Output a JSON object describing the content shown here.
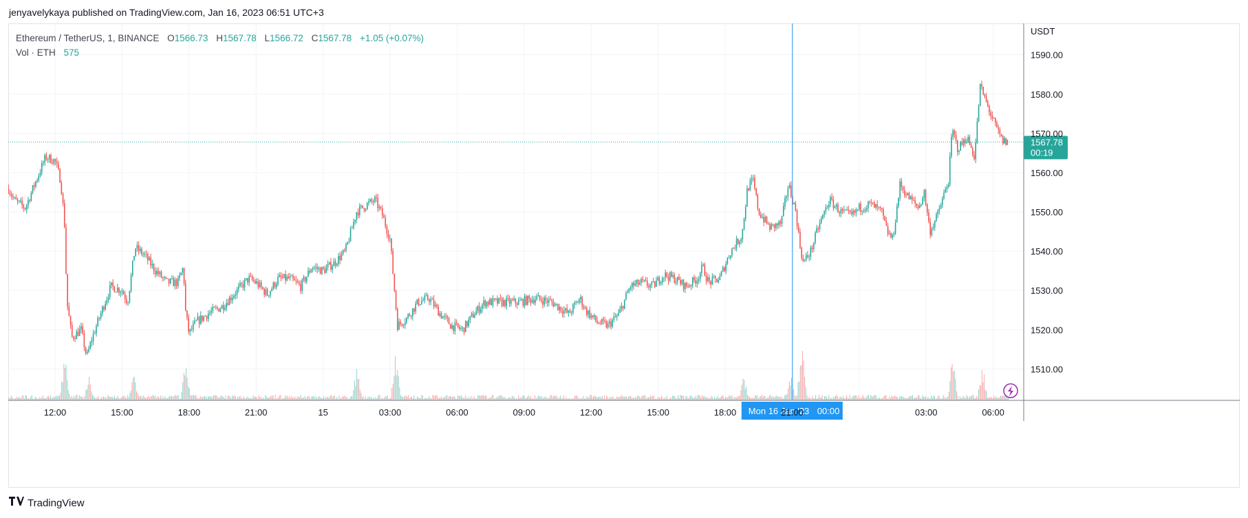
{
  "publisher_line": "jenyavelykaya published on TradingView.com, Jan 16, 2023 06:51 UTC+3",
  "footer_brand": "TradingView",
  "legend": {
    "symbol": "Ethereum / TetherUS, 1, BINANCE",
    "o_label": "O",
    "o_value": "1566.73",
    "h_label": "H",
    "h_value": "1567.78",
    "l_label": "L",
    "l_value": "1566.72",
    "c_label": "C",
    "c_value": "1567.78",
    "change": "+1.05 (+0.07%)",
    "vol_label": "Vol · ETH",
    "vol_value": "575"
  },
  "colors": {
    "up": "#26a69a",
    "down": "#ef5350",
    "crosshair": "#2196f3",
    "grid": "#f0f3fa",
    "accent_badge": "#9c27b0"
  },
  "chart_data": {
    "type": "candlestick",
    "symbol": "ETH/USDT",
    "interval": "1",
    "currency_label": "USDT",
    "ylim": [
      1502,
      1598
    ],
    "y_ticks": [
      "1590.00",
      "1580.00",
      "1570.00",
      "1560.00",
      "1550.00",
      "1540.00",
      "1530.00",
      "1520.00",
      "1510.00"
    ],
    "x_ticks": [
      "12:00",
      "15:00",
      "18:00",
      "21:00",
      "15",
      "03:00",
      "06:00",
      "09:00",
      "12:00",
      "15:00",
      "18:00",
      "21:00",
      "00:00",
      "03:00",
      "06:00"
    ],
    "last_price": "1567.78",
    "countdown": "00:19",
    "crosshair_label_date": "Mon 16 Jan '23",
    "crosshair_label_time": "00:00",
    "price_path": [
      {
        "t": "09:55",
        "p": 1556
      },
      {
        "t": "10:10",
        "p": 1553
      },
      {
        "t": "10:40",
        "p": 1551
      },
      {
        "t": "11:05",
        "p": 1557
      },
      {
        "t": "11:35",
        "p": 1564
      },
      {
        "t": "12:00",
        "p": 1563
      },
      {
        "t": "12:15",
        "p": 1558
      },
      {
        "t": "12:25",
        "p": 1548
      },
      {
        "t": "12:32",
        "p": 1527
      },
      {
        "t": "12:45",
        "p": 1518
      },
      {
        "t": "13:10",
        "p": 1520
      },
      {
        "t": "13:25",
        "p": 1513
      },
      {
        "t": "13:40",
        "p": 1518
      },
      {
        "t": "14:10",
        "p": 1526
      },
      {
        "t": "14:30",
        "p": 1531
      },
      {
        "t": "15:00",
        "p": 1530
      },
      {
        "t": "15:15",
        "p": 1527
      },
      {
        "t": "15:35",
        "p": 1541
      },
      {
        "t": "16:00",
        "p": 1539
      },
      {
        "t": "16:30",
        "p": 1535
      },
      {
        "t": "17:00",
        "p": 1532
      },
      {
        "t": "17:30",
        "p": 1532
      },
      {
        "t": "17:45",
        "p": 1536
      },
      {
        "t": "17:50",
        "p": 1525
      },
      {
        "t": "18:00",
        "p": 1519
      },
      {
        "t": "18:20",
        "p": 1522
      },
      {
        "t": "18:50",
        "p": 1524
      },
      {
        "t": "19:30",
        "p": 1526
      },
      {
        "t": "20:00",
        "p": 1529
      },
      {
        "t": "20:40",
        "p": 1533
      },
      {
        "t": "21:00",
        "p": 1532
      },
      {
        "t": "21:30",
        "p": 1529
      },
      {
        "t": "22:00",
        "p": 1533
      },
      {
        "t": "22:30",
        "p": 1533
      },
      {
        "t": "23:00",
        "p": 1531
      },
      {
        "t": "23:30",
        "p": 1536
      },
      {
        "t": "00:00",
        "p": 1535
      },
      {
        "t": "00:30",
        "p": 1537
      },
      {
        "t": "01:00",
        "p": 1540
      },
      {
        "t": "01:30",
        "p": 1550
      },
      {
        "t": "02:00",
        "p": 1552
      },
      {
        "t": "02:20",
        "p": 1553
      },
      {
        "t": "02:40",
        "p": 1549
      },
      {
        "t": "03:00",
        "p": 1543
      },
      {
        "t": "03:20",
        "p": 1521
      },
      {
        "t": "03:45",
        "p": 1523
      },
      {
        "t": "04:15",
        "p": 1527
      },
      {
        "t": "04:45",
        "p": 1528
      },
      {
        "t": "05:15",
        "p": 1524
      },
      {
        "t": "05:45",
        "p": 1521
      },
      {
        "t": "06:15",
        "p": 1520
      },
      {
        "t": "06:45",
        "p": 1524
      },
      {
        "t": "07:15",
        "p": 1527
      },
      {
        "t": "08:00",
        "p": 1527
      },
      {
        "t": "08:45",
        "p": 1527
      },
      {
        "t": "09:30",
        "p": 1528
      },
      {
        "t": "10:15",
        "p": 1527
      },
      {
        "t": "11:00",
        "p": 1524
      },
      {
        "t": "11:30",
        "p": 1528
      },
      {
        "t": "11:45",
        "p": 1525
      },
      {
        "t": "12:15",
        "p": 1522
      },
      {
        "t": "12:45",
        "p": 1521
      },
      {
        "t": "13:15",
        "p": 1524
      },
      {
        "t": "13:45",
        "p": 1531
      },
      {
        "t": "14:15",
        "p": 1532
      },
      {
        "t": "14:45",
        "p": 1531
      },
      {
        "t": "15:15",
        "p": 1534
      },
      {
        "t": "15:45",
        "p": 1533
      },
      {
        "t": "16:15",
        "p": 1531
      },
      {
        "t": "16:45",
        "p": 1533
      },
      {
        "t": "17:00",
        "p": 1536
      },
      {
        "t": "17:15",
        "p": 1532
      },
      {
        "t": "17:45",
        "p": 1533
      },
      {
        "t": "18:15",
        "p": 1540
      },
      {
        "t": "18:45",
        "p": 1544
      },
      {
        "t": "19:00",
        "p": 1556
      },
      {
        "t": "19:15",
        "p": 1558
      },
      {
        "t": "19:30",
        "p": 1550
      },
      {
        "t": "20:00",
        "p": 1546
      },
      {
        "t": "20:30",
        "p": 1547
      },
      {
        "t": "20:50",
        "p": 1557
      },
      {
        "t": "21:10",
        "p": 1550
      },
      {
        "t": "21:20",
        "p": 1542
      },
      {
        "t": "21:30",
        "p": 1537
      },
      {
        "t": "21:50",
        "p": 1540
      },
      {
        "t": "22:10",
        "p": 1546
      },
      {
        "t": "22:40",
        "p": 1553
      },
      {
        "t": "23:10",
        "p": 1550
      },
      {
        "t": "23:40",
        "p": 1549
      },
      {
        "t": "00:00",
        "p": 1551
      },
      {
        "t": "00:30",
        "p": 1552
      },
      {
        "t": "01:00",
        "p": 1550
      },
      {
        "t": "01:15",
        "p": 1545
      },
      {
        "t": "01:30",
        "p": 1543
      },
      {
        "t": "01:50",
        "p": 1557
      },
      {
        "t": "02:10",
        "p": 1554
      },
      {
        "t": "02:40",
        "p": 1551
      },
      {
        "t": "02:55",
        "p": 1555
      },
      {
        "t": "03:10",
        "p": 1545
      },
      {
        "t": "03:30",
        "p": 1549
      },
      {
        "t": "04:00",
        "p": 1558
      },
      {
        "t": "04:10",
        "p": 1571
      },
      {
        "t": "04:25",
        "p": 1566
      },
      {
        "t": "04:50",
        "p": 1569
      },
      {
        "t": "05:10",
        "p": 1564
      },
      {
        "t": "05:25",
        "p": 1582
      },
      {
        "t": "05:45",
        "p": 1577
      },
      {
        "t": "06:05",
        "p": 1572
      },
      {
        "t": "06:25",
        "p": 1568
      },
      {
        "t": "06:40",
        "p": 1567.78
      }
    ],
    "volume": {
      "label": "Vol · ETH",
      "last": 575,
      "spikes": [
        {
          "t": "12:25",
          "rel": 0.55
        },
        {
          "t": "13:30",
          "rel": 0.3
        },
        {
          "t": "15:30",
          "rel": 0.35
        },
        {
          "t": "17:50",
          "rel": 0.45
        },
        {
          "t": "01:30",
          "rel": 0.38
        },
        {
          "t": "03:15",
          "rel": 0.55
        },
        {
          "t": "18:50",
          "rel": 0.28
        },
        {
          "t": "20:55",
          "rel": 0.32
        },
        {
          "t": "21:25",
          "rel": 0.62
        },
        {
          "t": "04:10",
          "rel": 0.52
        },
        {
          "t": "05:30",
          "rel": 0.42
        }
      ]
    },
    "grid": true,
    "price_scale": "right"
  }
}
